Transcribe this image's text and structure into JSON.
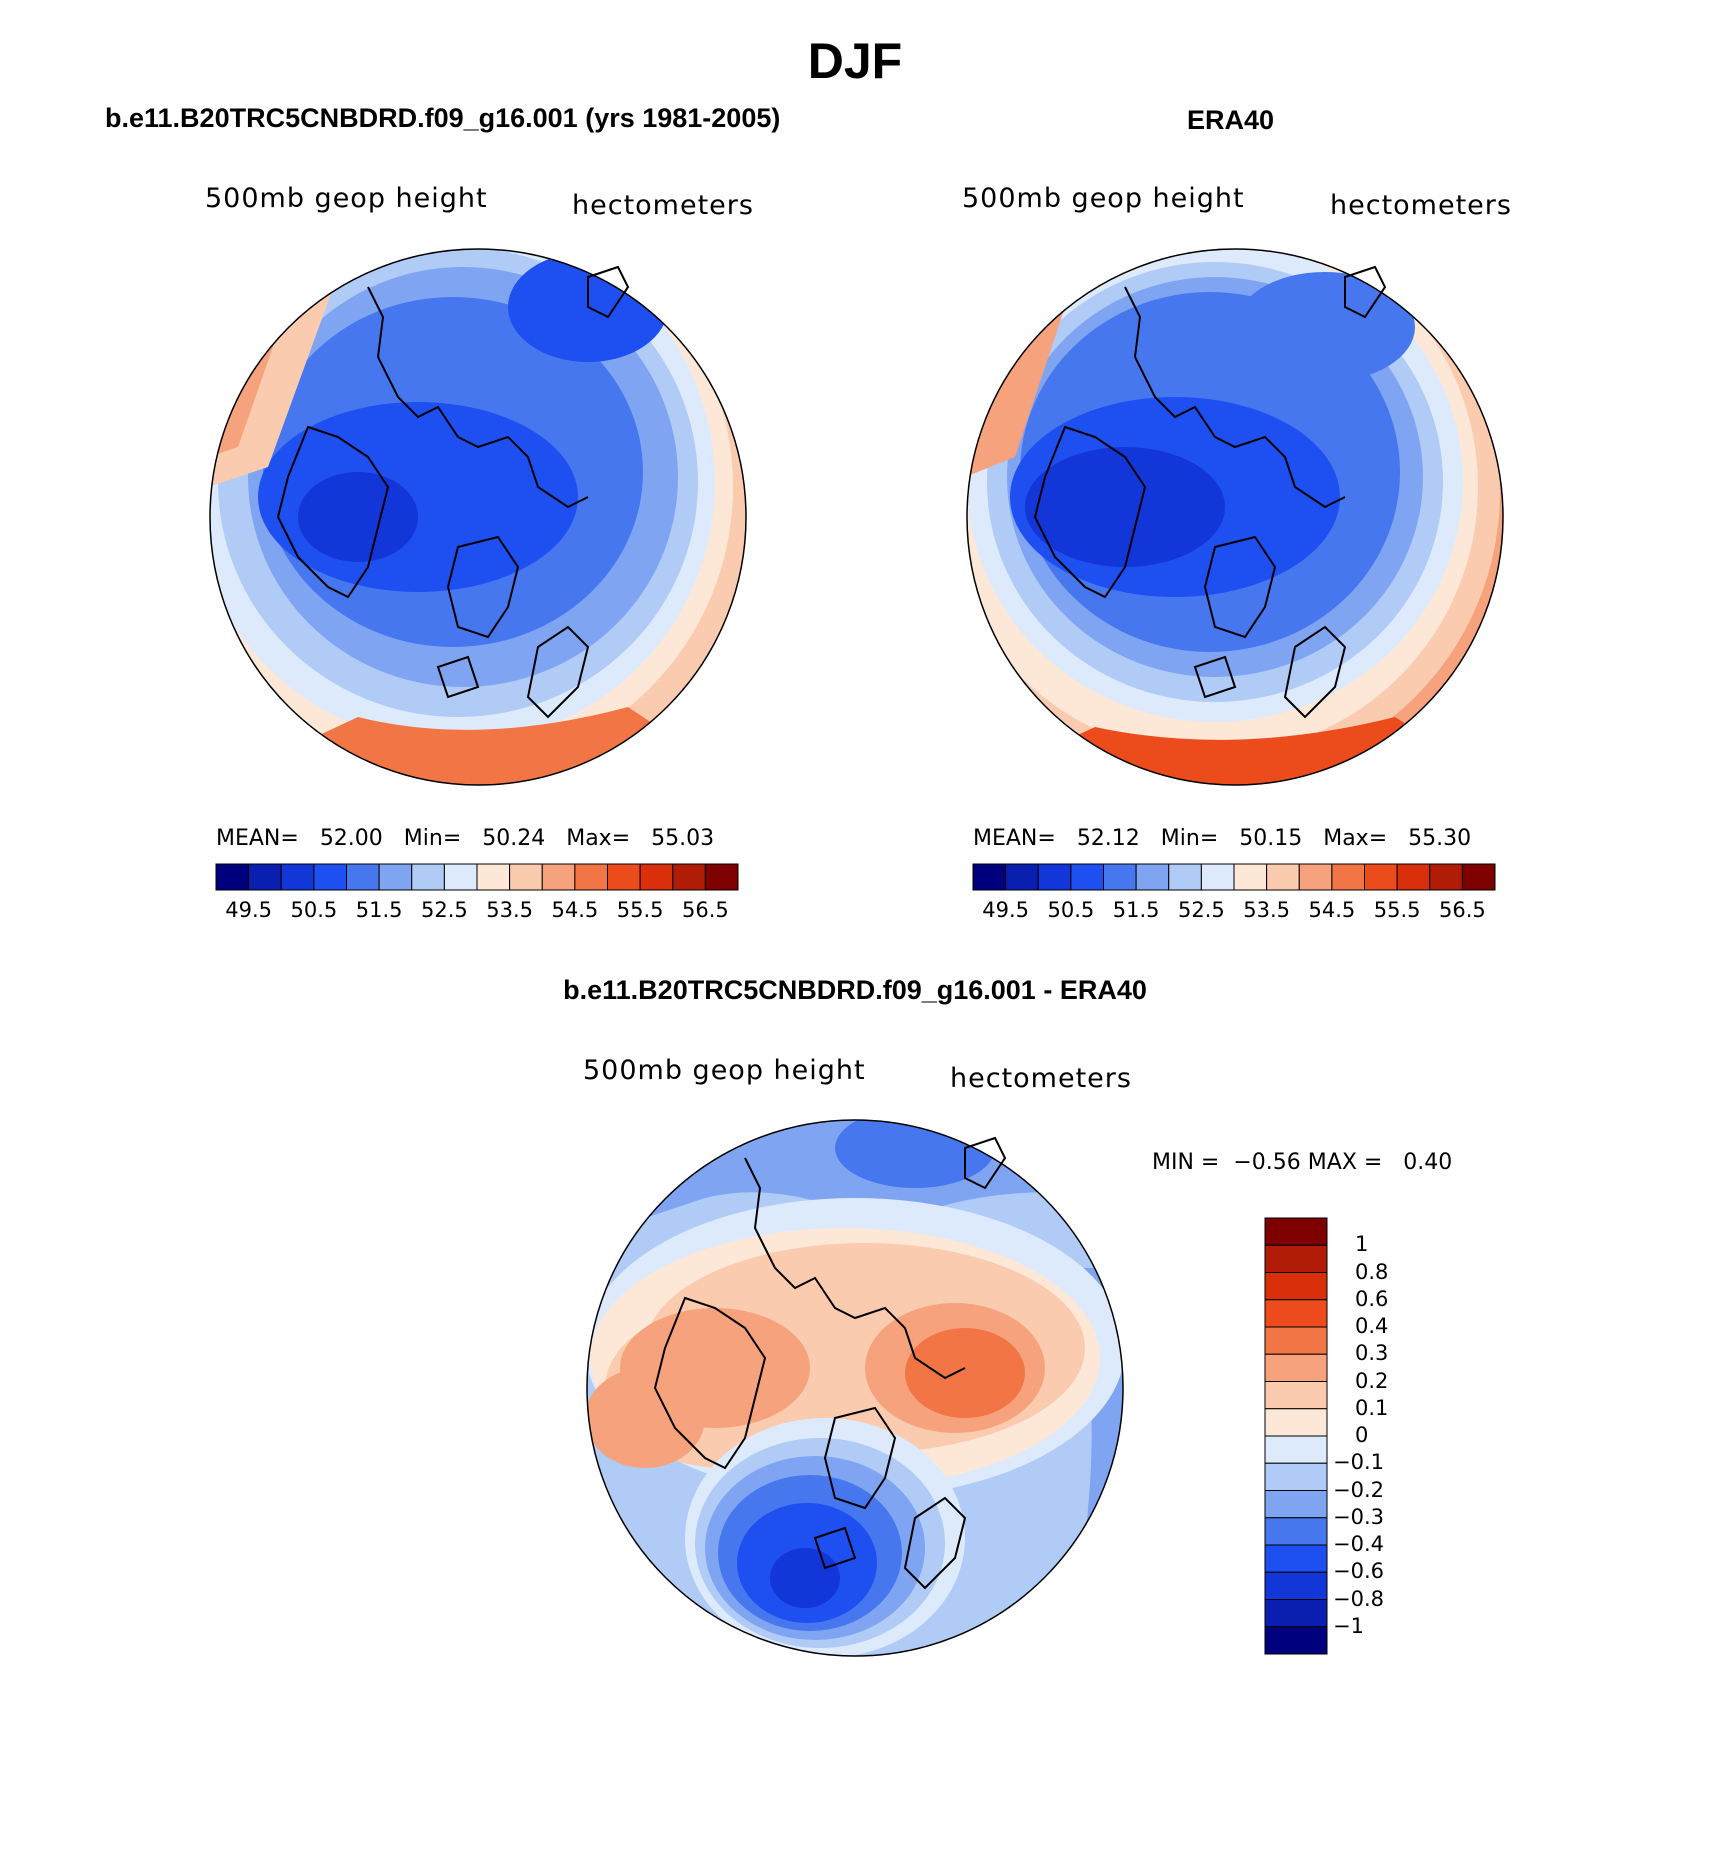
{
  "figure": {
    "title": "DJF"
  },
  "panels": {
    "model": {
      "title": "b.e11.B20TRC5CNBDRD.f09_g16.001 (yrs 1981-2005)",
      "variable": "500mb geop height",
      "units": "hectometers",
      "mean_label": "MEAN=",
      "mean": "52.00",
      "min_label": "Min=",
      "min": "50.24",
      "max_label": "Max=",
      "max": "55.03"
    },
    "obs": {
      "title": "ERA40",
      "variable": "500mb geop height",
      "units": "hectometers",
      "mean_label": "MEAN=",
      "mean": "52.12",
      "min_label": "Min=",
      "min": "50.15",
      "max_label": "Max=",
      "max": "55.30"
    },
    "diff": {
      "title": "b.e11.B20TRC5CNBDRD.f09_g16.001 - ERA40",
      "variable": "500mb geop height",
      "units": "hectometers",
      "min_label": "MIN =",
      "min": "−0.56",
      "max_label": "MAX =",
      "max": "0.40"
    }
  },
  "colorbars": {
    "abs": {
      "colors": [
        "#00007f",
        "#0a1fb0",
        "#1236d8",
        "#1e4ff0",
        "#4677ee",
        "#7fa4f2",
        "#b1cbf7",
        "#dceafc",
        "#fde8d8",
        "#fbcbb0",
        "#f6a27c",
        "#f27546",
        "#ec4c1c",
        "#d9300b",
        "#b01c06",
        "#7e0000"
      ],
      "tick_labels": [
        "49.5",
        "50.5",
        "51.5",
        "52.5",
        "53.5",
        "54.5",
        "55.5",
        "56.5"
      ]
    },
    "diff": {
      "colors": [
        "#00007f",
        "#0a1fb0",
        "#1236d8",
        "#1e4ff0",
        "#4677ee",
        "#7fa4f2",
        "#b1cbf7",
        "#dceafc",
        "#fde8d8",
        "#fbcbb0",
        "#f6a27c",
        "#f27546",
        "#ec4c1c",
        "#d9300b",
        "#b01c06",
        "#7e0000"
      ],
      "tick_labels": [
        "1",
        "0.8",
        "0.6",
        "0.4",
        "0.3",
        "0.2",
        "0.1",
        "0",
        "−0.1",
        "−0.2",
        "−0.3",
        "−0.4",
        "−0.6",
        "−0.8",
        "−1"
      ]
    }
  }
}
